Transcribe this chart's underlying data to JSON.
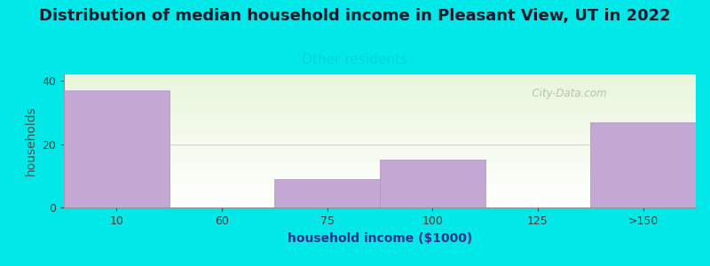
{
  "title": "Distribution of median household income in Pleasant View, UT in 2022",
  "subtitle": "Other residents",
  "subtitle_color": "#00d4d4",
  "xlabel": "household income ($1000)",
  "ylabel": "households",
  "background_color": "#00e8e8",
  "bar_color": "#c4a8d4",
  "bar_edge_color": "#b090c0",
  "categories": [
    "10",
    "60",
    "75",
    "100",
    "125",
    ">150"
  ],
  "bar_lefts": [
    0,
    1,
    2,
    3,
    4,
    5
  ],
  "bar_heights": [
    37,
    0,
    9,
    15,
    0,
    27
  ],
  "bar_widths": [
    1,
    1,
    1,
    1,
    1,
    1
  ],
  "ylim": [
    0,
    42
  ],
  "yticks": [
    0,
    20,
    40
  ],
  "grid_color": "#ccdcb4",
  "watermark": "  City-Data.com",
  "watermark_color": "#a8bca8",
  "title_fontsize": 13,
  "subtitle_fontsize": 11,
  "axis_label_fontsize": 10,
  "tick_fontsize": 9,
  "title_color": "#1a1a2e",
  "tick_color": "#404040",
  "xlabel_color": "#303090",
  "ylabel_color": "#505050"
}
